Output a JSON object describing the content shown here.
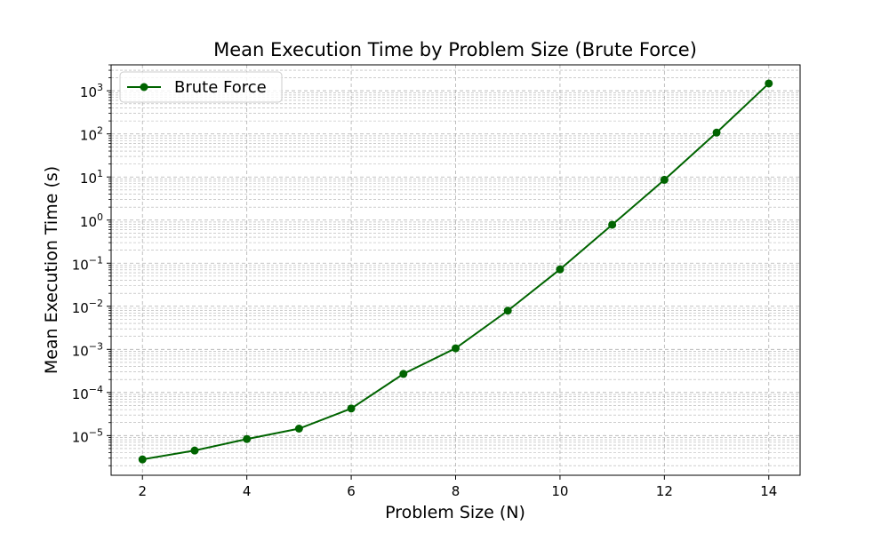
{
  "chart_data": {
    "type": "line",
    "title": "Mean Execution Time by Problem Size (Brute Force)",
    "xlabel": "Problem Size (N)",
    "ylabel": "Mean Execution Time (s)",
    "x": [
      2,
      3,
      4,
      5,
      6,
      7,
      8,
      9,
      10,
      11,
      12,
      13,
      14
    ],
    "series": [
      {
        "name": "Brute Force",
        "color": "#006400",
        "marker": "circle",
        "values": [
          2.8e-06,
          4.5e-06,
          8.3e-06,
          1.45e-05,
          4.25e-05,
          0.00027,
          0.00106,
          0.0079,
          0.072,
          0.78,
          8.6,
          107,
          1480
        ]
      }
    ],
    "xlim": [
      1.4,
      14.6
    ],
    "ylim": [
      1.2e-06,
      4000
    ],
    "yscale": "log",
    "x_ticks": [
      2,
      4,
      6,
      8,
      10,
      12,
      14
    ],
    "y_ticks": [
      {
        "base": "10",
        "exp": "−5",
        "value": 1e-05
      },
      {
        "base": "10",
        "exp": "−4",
        "value": 0.0001
      },
      {
        "base": "10",
        "exp": "−3",
        "value": 0.001
      },
      {
        "base": "10",
        "exp": "−2",
        "value": 0.01
      },
      {
        "base": "10",
        "exp": "−1",
        "value": 0.1
      },
      {
        "base": "10",
        "exp": "0",
        "value": 1
      },
      {
        "base": "10",
        "exp": "1",
        "value": 10
      },
      {
        "base": "10",
        "exp": "2",
        "value": 100
      },
      {
        "base": "10",
        "exp": "3",
        "value": 1000
      }
    ],
    "grid": true,
    "legend_position": "top-left"
  }
}
